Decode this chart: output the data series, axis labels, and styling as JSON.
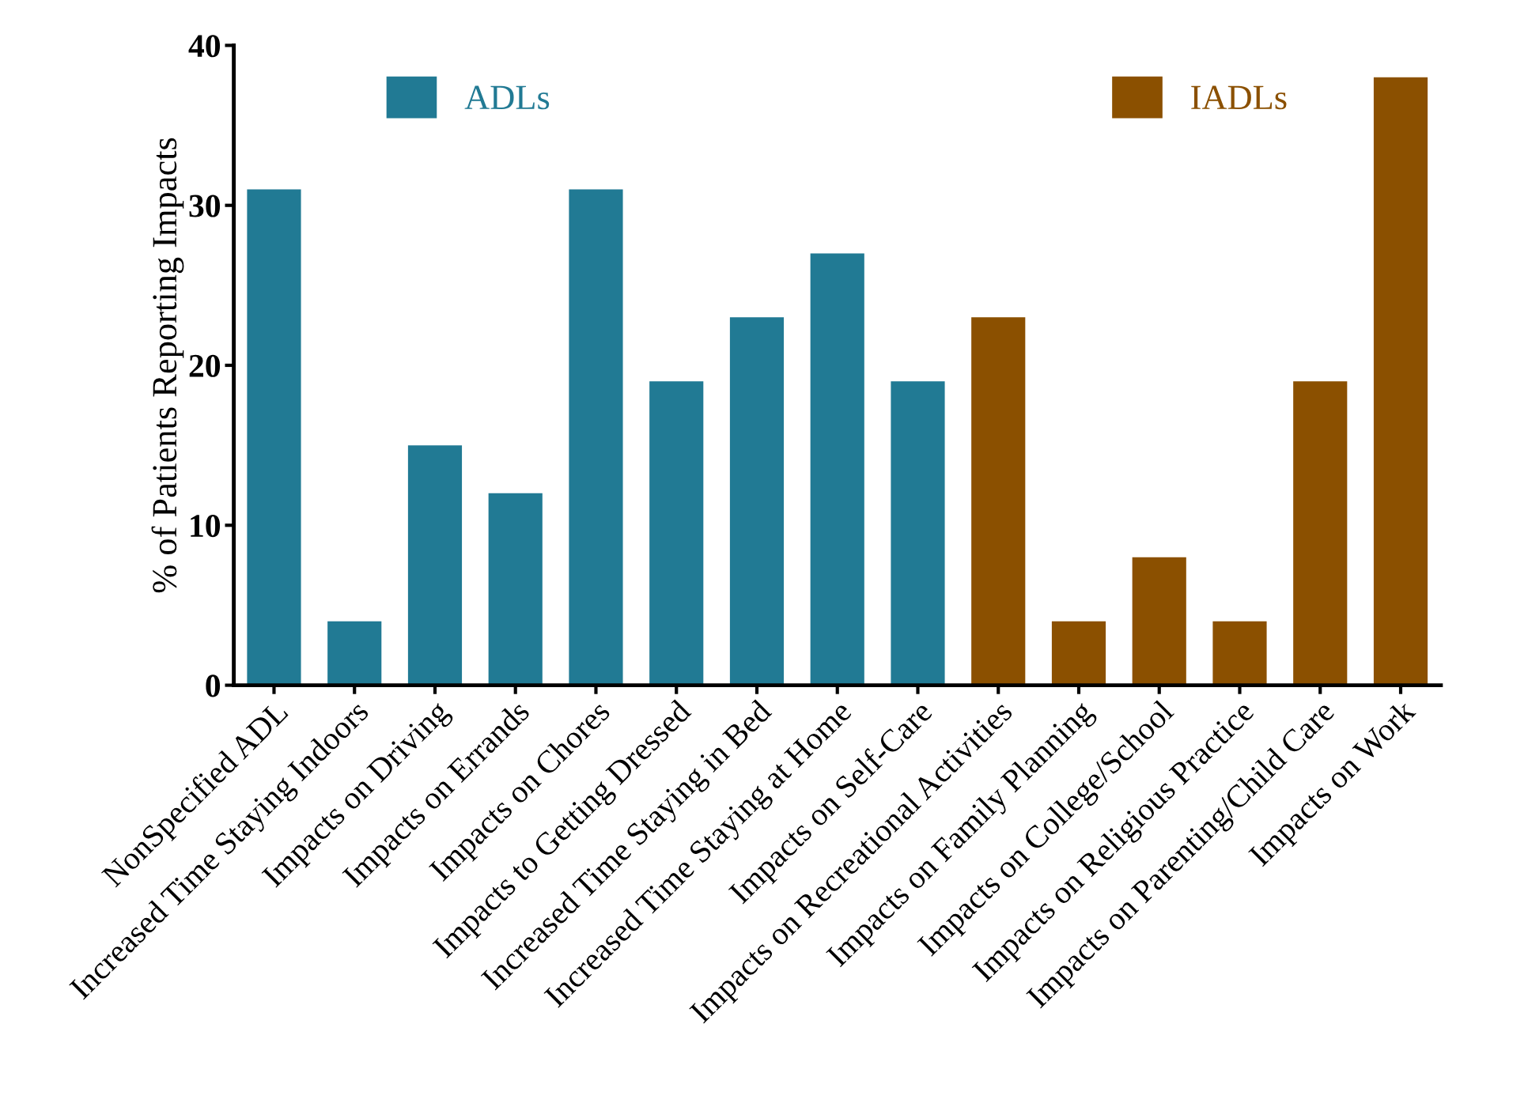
{
  "chart_data": {
    "type": "bar",
    "ylabel": "% of Patients Reporting Impacts",
    "categories": [
      "NonSpecified ADL",
      "Increased Time Staying Indoors",
      "Impacts on Driving",
      "Impacts on Errands",
      "Impacts on Chores",
      "Impacts to Getting Dressed",
      "Increased Time Staying in Bed",
      "Increased Time Staying at Home",
      "Impacts on Self-Care",
      "Impacts on Recreational Activities",
      "Impacts on Family Planning",
      "Impacts on College/School",
      "Impacts on Religious Practice",
      "Impacts on Parenting/Child Care",
      "Impacts on Work"
    ],
    "series": [
      {
        "name": "ADLs",
        "color": "#217a94",
        "values": [
          31,
          4,
          15,
          12,
          31,
          19,
          23,
          27,
          19,
          null,
          null,
          null,
          null,
          null,
          null
        ]
      },
      {
        "name": "IADLs",
        "color": "#8b5000",
        "values": [
          null,
          null,
          null,
          null,
          null,
          null,
          null,
          null,
          null,
          23,
          4,
          8,
          4,
          19,
          38
        ]
      }
    ],
    "ylim": [
      0,
      40
    ],
    "yticks": [
      0,
      10,
      20,
      30,
      40
    ],
    "grid": false,
    "legend": "top"
  }
}
